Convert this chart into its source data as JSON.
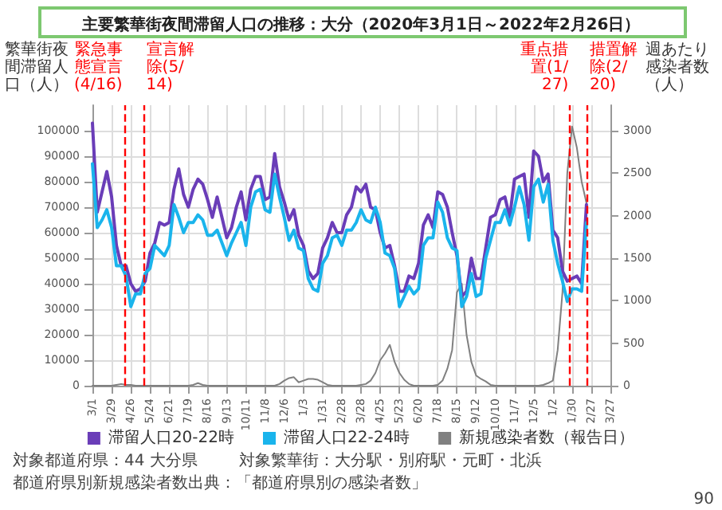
{
  "chart_data": {
    "type": "line",
    "title": "主要繁華街夜間滞留人口の推移：大分（2020年3月1日～2022年2月26日）",
    "ylabel": "繁華街夜間滞留人口（人）",
    "y2label": "週あたり感染者数（人）",
    "x": [
      "2020-03-01",
      "2020-03-08",
      "2020-03-15",
      "2020-03-22",
      "2020-03-29",
      "2020-04-05",
      "2020-04-12",
      "2020-04-19",
      "2020-04-26",
      "2020-05-03",
      "2020-05-10",
      "2020-05-17",
      "2020-05-24",
      "2020-05-31",
      "2020-06-07",
      "2020-06-14",
      "2020-06-21",
      "2020-06-28",
      "2020-07-05",
      "2020-07-12",
      "2020-07-19",
      "2020-07-26",
      "2020-08-02",
      "2020-08-09",
      "2020-08-16",
      "2020-08-23",
      "2020-08-30",
      "2020-09-06",
      "2020-09-13",
      "2020-09-20",
      "2020-09-27",
      "2020-10-04",
      "2020-10-11",
      "2020-10-18",
      "2020-10-25",
      "2020-11-01",
      "2020-11-08",
      "2020-11-15",
      "2020-11-22",
      "2020-11-29",
      "2020-12-06",
      "2020-12-13",
      "2020-12-20",
      "2020-12-27",
      "2021-01-03",
      "2021-01-10",
      "2021-01-17",
      "2021-01-24",
      "2021-01-31",
      "2021-02-07",
      "2021-02-14",
      "2021-02-21",
      "2021-02-28",
      "2021-03-07",
      "2021-03-14",
      "2021-03-21",
      "2021-03-28",
      "2021-04-04",
      "2021-04-11",
      "2021-04-18",
      "2021-04-25",
      "2021-05-02",
      "2021-05-09",
      "2021-05-16",
      "2021-05-23",
      "2021-05-30",
      "2021-06-06",
      "2021-06-13",
      "2021-06-20",
      "2021-06-27",
      "2021-07-04",
      "2021-07-11",
      "2021-07-18",
      "2021-07-25",
      "2021-08-01",
      "2021-08-08",
      "2021-08-15",
      "2021-08-22",
      "2021-08-29",
      "2021-09-05",
      "2021-09-12",
      "2021-09-19",
      "2021-09-26",
      "2021-10-03",
      "2021-10-10",
      "2021-10-17",
      "2021-10-24",
      "2021-10-31",
      "2021-11-07",
      "2021-11-14",
      "2021-11-21",
      "2021-11-28",
      "2021-12-05",
      "2021-12-12",
      "2021-12-19",
      "2021-12-26",
      "2022-01-02",
      "2022-01-09",
      "2022-01-16",
      "2022-01-23",
      "2022-01-30",
      "2022-02-06",
      "2022-02-13",
      "2022-02-20"
    ],
    "series": [
      {
        "name": "滞留人口20-22時",
        "color": "#6a3db8",
        "values": [
          103000,
          68000,
          76000,
          84000,
          74000,
          55000,
          47000,
          47000,
          40000,
          37000,
          38000,
          41000,
          52000,
          56000,
          64000,
          63000,
          64000,
          77000,
          85000,
          75000,
          70000,
          77000,
          81000,
          79000,
          73000,
          66000,
          74000,
          66000,
          58000,
          62000,
          70000,
          76000,
          65000,
          77000,
          82000,
          82000,
          73000,
          74000,
          91000,
          78000,
          72000,
          65000,
          69000,
          59000,
          55000,
          45000,
          42000,
          44000,
          54000,
          58000,
          64000,
          60000,
          60000,
          67000,
          70000,
          78000,
          76000,
          79000,
          70000,
          69000,
          60000,
          54000,
          55000,
          47000,
          37000,
          37000,
          43000,
          42000,
          48000,
          63000,
          67000,
          62000,
          76000,
          75000,
          70000,
          60000,
          51000,
          35000,
          37000,
          50000,
          42000,
          42000,
          54000,
          66000,
          67000,
          73000,
          74000,
          66000,
          81000,
          82000,
          83000,
          66000,
          92000,
          90000,
          80000,
          83000,
          61000,
          58000,
          45000,
          41000,
          42000,
          43000,
          40000,
          71000
        ]
      },
      {
        "name": "滞留人口22-24時",
        "color": "#1ab4ec",
        "values": [
          87000,
          62000,
          65000,
          69000,
          62000,
          47000,
          47000,
          43000,
          31000,
          36000,
          36000,
          44000,
          46000,
          55000,
          53000,
          51000,
          55000,
          71000,
          66000,
          60000,
          64000,
          64000,
          67000,
          65000,
          59000,
          59000,
          61000,
          56000,
          51000,
          56000,
          60000,
          64000,
          55000,
          70000,
          76000,
          77000,
          69000,
          68000,
          83000,
          74000,
          66000,
          57000,
          61000,
          54000,
          53000,
          42000,
          38000,
          37000,
          48000,
          51000,
          58000,
          59000,
          55000,
          61000,
          61000,
          64000,
          69000,
          65000,
          64000,
          70000,
          64000,
          52000,
          51000,
          46000,
          31000,
          35000,
          39000,
          36000,
          38000,
          55000,
          58000,
          58000,
          72000,
          68000,
          58000,
          54000,
          53000,
          31000,
          35000,
          44000,
          35000,
          36000,
          50000,
          57000,
          64000,
          64000,
          69000,
          63000,
          70000,
          78000,
          71000,
          57000,
          78000,
          81000,
          72000,
          79000,
          57000,
          48000,
          41000,
          33000,
          38000,
          38000,
          37000,
          64000
        ]
      },
      {
        "name": "新規感染者数（報告日）",
        "color": "#808080",
        "axis": "y2",
        "values": [
          0,
          0,
          0,
          0,
          0,
          10,
          20,
          10,
          10,
          0,
          0,
          0,
          0,
          0,
          0,
          0,
          0,
          0,
          0,
          0,
          0,
          10,
          30,
          10,
          0,
          0,
          0,
          0,
          0,
          0,
          0,
          0,
          0,
          0,
          0,
          0,
          0,
          0,
          0,
          20,
          60,
          90,
          100,
          40,
          60,
          80,
          80,
          70,
          40,
          10,
          0,
          0,
          0,
          0,
          0,
          0,
          10,
          20,
          60,
          150,
          300,
          380,
          480,
          280,
          150,
          70,
          20,
          0,
          0,
          0,
          0,
          0,
          10,
          60,
          200,
          420,
          1100,
          1200,
          600,
          280,
          120,
          80,
          50,
          10,
          0,
          0,
          0,
          0,
          0,
          0,
          0,
          0,
          0,
          0,
          10,
          30,
          60,
          420,
          1100,
          2500,
          3050,
          2800,
          2400,
          2150
        ]
      }
    ],
    "xlim": [
      "2020-03-01",
      "2022-03-27"
    ],
    "xticks": [
      {
        "value": "2020-03-01",
        "label": "3/1"
      },
      {
        "value": "2020-03-29",
        "label": "3/29"
      },
      {
        "value": "2020-04-26",
        "label": "4/26"
      },
      {
        "value": "2020-05-24",
        "label": "5/24"
      },
      {
        "value": "2020-06-21",
        "label": "6/21"
      },
      {
        "value": "2020-07-19",
        "label": "7/19"
      },
      {
        "value": "2020-08-16",
        "label": "8/16"
      },
      {
        "value": "2020-09-13",
        "label": "9/13"
      },
      {
        "value": "2020-10-11",
        "label": "10/11"
      },
      {
        "value": "2020-11-08",
        "label": "11/8"
      },
      {
        "value": "2020-12-06",
        "label": "12/6"
      },
      {
        "value": "2021-01-03",
        "label": "1/3"
      },
      {
        "value": "2021-01-31",
        "label": "1/31"
      },
      {
        "value": "2021-02-28",
        "label": "2/28"
      },
      {
        "value": "2021-03-28",
        "label": "3/28"
      },
      {
        "value": "2021-04-25",
        "label": "4/25"
      },
      {
        "value": "2021-05-23",
        "label": "5/23"
      },
      {
        "value": "2021-06-20",
        "label": "6/20"
      },
      {
        "value": "2021-07-18",
        "label": "7/18"
      },
      {
        "value": "2021-08-15",
        "label": "8/15"
      },
      {
        "value": "2021-09-12",
        "label": "9/12"
      },
      {
        "value": "2021-10-10",
        "label": "10/10"
      },
      {
        "value": "2021-11-07",
        "label": "11/7"
      },
      {
        "value": "2021-12-05",
        "label": "12/5"
      },
      {
        "value": "2022-01-02",
        "label": "1/2"
      },
      {
        "value": "2022-01-30",
        "label": "1/30"
      },
      {
        "value": "2022-02-27",
        "label": "2/27"
      },
      {
        "value": "2022-03-27",
        "label": "3/27"
      }
    ],
    "ylim": [
      0,
      110000
    ],
    "yticks": [
      0,
      10000,
      20000,
      30000,
      40000,
      50000,
      60000,
      70000,
      80000,
      90000,
      100000
    ],
    "y2lim": [
      0,
      3300
    ],
    "y2ticks": [
      0,
      500,
      1000,
      1500,
      2000,
      2500,
      3000
    ],
    "ref_lines": [
      {
        "axis": "x",
        "value": "2020-04-16",
        "label": "緊急事態宣言(4/16)",
        "color": "#ff0000",
        "line_style": "dashed"
      },
      {
        "axis": "x",
        "value": "2020-05-14",
        "label": "宣言解除(5/14)",
        "color": "#ff0000",
        "line_style": "dashed"
      },
      {
        "axis": "x",
        "value": "2022-01-27",
        "label": "重点措置(1/27)",
        "color": "#ff0000",
        "line_style": "dashed"
      },
      {
        "axis": "x",
        "value": "2022-02-20",
        "label": "措置解除(2/20)",
        "color": "#ff0000",
        "line_style": "dashed"
      }
    ],
    "annotations": [
      "対象都道府県：44 大分県",
      "対象繁華街：大分駅・別府駅・元町・北浜",
      "都道府県別新規感染者数出典：「都道府県別の感染者数」",
      "90"
    ],
    "grid": true,
    "legend": "bottom",
    "marker": "none",
    "line_style": "solid"
  }
}
